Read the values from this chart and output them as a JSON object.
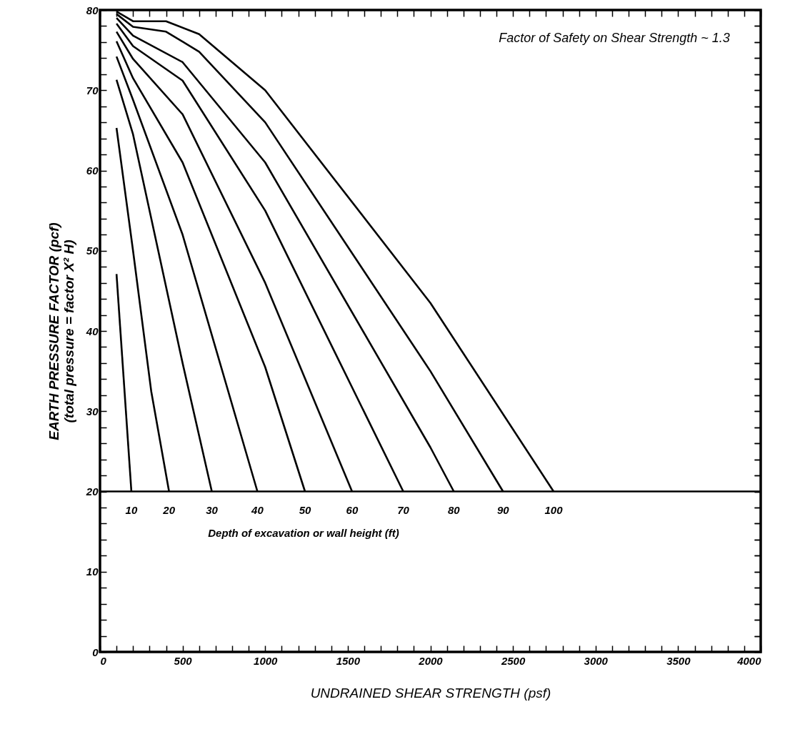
{
  "chart_data": {
    "type": "line",
    "xlabel": "UNDRAINED SHEAR STRENGTH (psf)",
    "ylabel": "EARTH PRESSURE FACTOR (pcf)\n(total pressure = factor X² H)",
    "annotations": [
      "Factor of Safety on Shear Strength ~ 1.3",
      "Depth of excavation or wall height (ft)"
    ],
    "xlim": [
      0,
      4000
    ],
    "ylim": [
      0,
      80
    ],
    "xticks": [
      0,
      {
        "value": 100,
        "label": null
      },
      {
        "value": 200,
        "label": null
      },
      {
        "value": 300,
        "label": null
      },
      {
        "value": 400,
        "label": null
      },
      500,
      {
        "value": 600,
        "label": null
      },
      {
        "value": 700,
        "label": null
      },
      {
        "value": 800,
        "label": null
      },
      {
        "value": 900,
        "label": null
      },
      1000,
      {
        "value": 1100,
        "label": null
      },
      {
        "value": 1200,
        "label": null
      },
      {
        "value": 1300,
        "label": null
      },
      {
        "value": 1400,
        "label": null
      },
      1500,
      {
        "value": 1600,
        "label": null
      },
      {
        "value": 1700,
        "label": null
      },
      {
        "value": 1800,
        "label": null
      },
      {
        "value": 1900,
        "label": null
      },
      2000,
      {
        "value": 2100,
        "label": null
      },
      {
        "value": 2200,
        "label": null
      },
      {
        "value": 2300,
        "label": null
      },
      {
        "value": 2400,
        "label": null
      },
      2500,
      {
        "value": 2600,
        "label": null
      },
      {
        "value": 2700,
        "label": null
      },
      {
        "value": 2800,
        "label": null
      },
      {
        "value": 2900,
        "label": null
      },
      3000,
      {
        "value": 3100,
        "label": null
      },
      {
        "value": 3200,
        "label": null
      },
      {
        "value": 3300,
        "label": null
      },
      {
        "value": 3400,
        "label": null
      },
      3500,
      {
        "value": 3600,
        "label": null
      },
      {
        "value": 3700,
        "label": null
      },
      {
        "value": 3800,
        "label": null
      },
      {
        "value": 3900,
        "label": null
      },
      4000
    ],
    "yticks": [
      0,
      {
        "value": 2,
        "label": null
      },
      {
        "value": 4,
        "label": null
      },
      {
        "value": 6,
        "label": null
      },
      {
        "value": 8,
        "label": null
      },
      10,
      {
        "value": 12,
        "label": null
      },
      {
        "value": 14,
        "label": null
      },
      {
        "value": 16,
        "label": null
      },
      {
        "value": 18,
        "label": null
      },
      20,
      {
        "value": 22,
        "label": null
      },
      {
        "value": 24,
        "label": null
      },
      {
        "value": 26,
        "label": null
      },
      {
        "value": 28,
        "label": null
      },
      30,
      {
        "value": 32,
        "label": null
      },
      {
        "value": 34,
        "label": null
      },
      {
        "value": 36,
        "label": null
      },
      {
        "value": 38,
        "label": null
      },
      40,
      {
        "value": 42,
        "label": null
      },
      {
        "value": 44,
        "label": null
      },
      {
        "value": 46,
        "label": null
      },
      {
        "value": 48,
        "label": null
      },
      50,
      {
        "value": 52,
        "label": null
      },
      {
        "value": 54,
        "label": null
      },
      {
        "value": 56,
        "label": null
      },
      {
        "value": 58,
        "label": null
      },
      60,
      {
        "value": 62,
        "label": null
      },
      {
        "value": 64,
        "label": null
      },
      {
        "value": 66,
        "label": null
      },
      {
        "value": 68,
        "label": null
      },
      70,
      {
        "value": 72,
        "label": null
      },
      {
        "value": 74,
        "label": null
      },
      {
        "value": 76,
        "label": null
      },
      {
        "value": 78,
        "label": null
      },
      80
    ],
    "line_style": "solid",
    "ref_lines": [
      {
        "axis": "y",
        "value": 20,
        "color": "#000000"
      }
    ],
    "series": [
      {
        "name": "10",
        "color": "#000000",
        "x": [
          100,
          190
        ],
        "values": [
          47.1,
          20
        ]
      },
      {
        "name": "20",
        "color": "#000000",
        "x": [
          100,
          200,
          310,
          418
        ],
        "values": [
          65.3,
          50,
          32.5,
          20
        ]
      },
      {
        "name": "30",
        "color": "#000000",
        "x": [
          100,
          200,
          500,
          677
        ],
        "values": [
          71.3,
          64.5,
          36,
          20
        ]
      },
      {
        "name": "40",
        "color": "#000000",
        "x": [
          100,
          200,
          500,
          953
        ],
        "values": [
          74.2,
          68.8,
          52,
          20
        ]
      },
      {
        "name": "50",
        "color": "#000000",
        "x": [
          100,
          200,
          500,
          1000,
          1241
        ],
        "values": [
          76.1,
          71.5,
          61,
          35.5,
          20
        ]
      },
      {
        "name": "60",
        "color": "#000000",
        "x": [
          100,
          200,
          500,
          1000,
          1526
        ],
        "values": [
          77.3,
          73.9,
          67,
          46,
          20
        ]
      },
      {
        "name": "70",
        "color": "#000000",
        "x": [
          100,
          200,
          500,
          1000,
          1836
        ],
        "values": [
          78.3,
          75.5,
          71.2,
          55,
          20
        ]
      },
      {
        "name": "80",
        "color": "#000000",
        "x": [
          100,
          200,
          500,
          1000,
          2000,
          2142
        ],
        "values": [
          79,
          76.8,
          73.5,
          61,
          25.5,
          20
        ]
      },
      {
        "name": "90",
        "color": "#000000",
        "x": [
          100,
          200,
          400,
          600,
          1000,
          2000,
          2440
        ],
        "values": [
          79.5,
          77.9,
          77.3,
          74.8,
          66,
          35,
          20
        ]
      },
      {
        "name": "100",
        "color": "#000000",
        "x": [
          100,
          200,
          400,
          600,
          1000,
          2000,
          2746
        ],
        "values": [
          79.8,
          78.6,
          78.6,
          77,
          70,
          43.5,
          20
        ]
      }
    ]
  }
}
